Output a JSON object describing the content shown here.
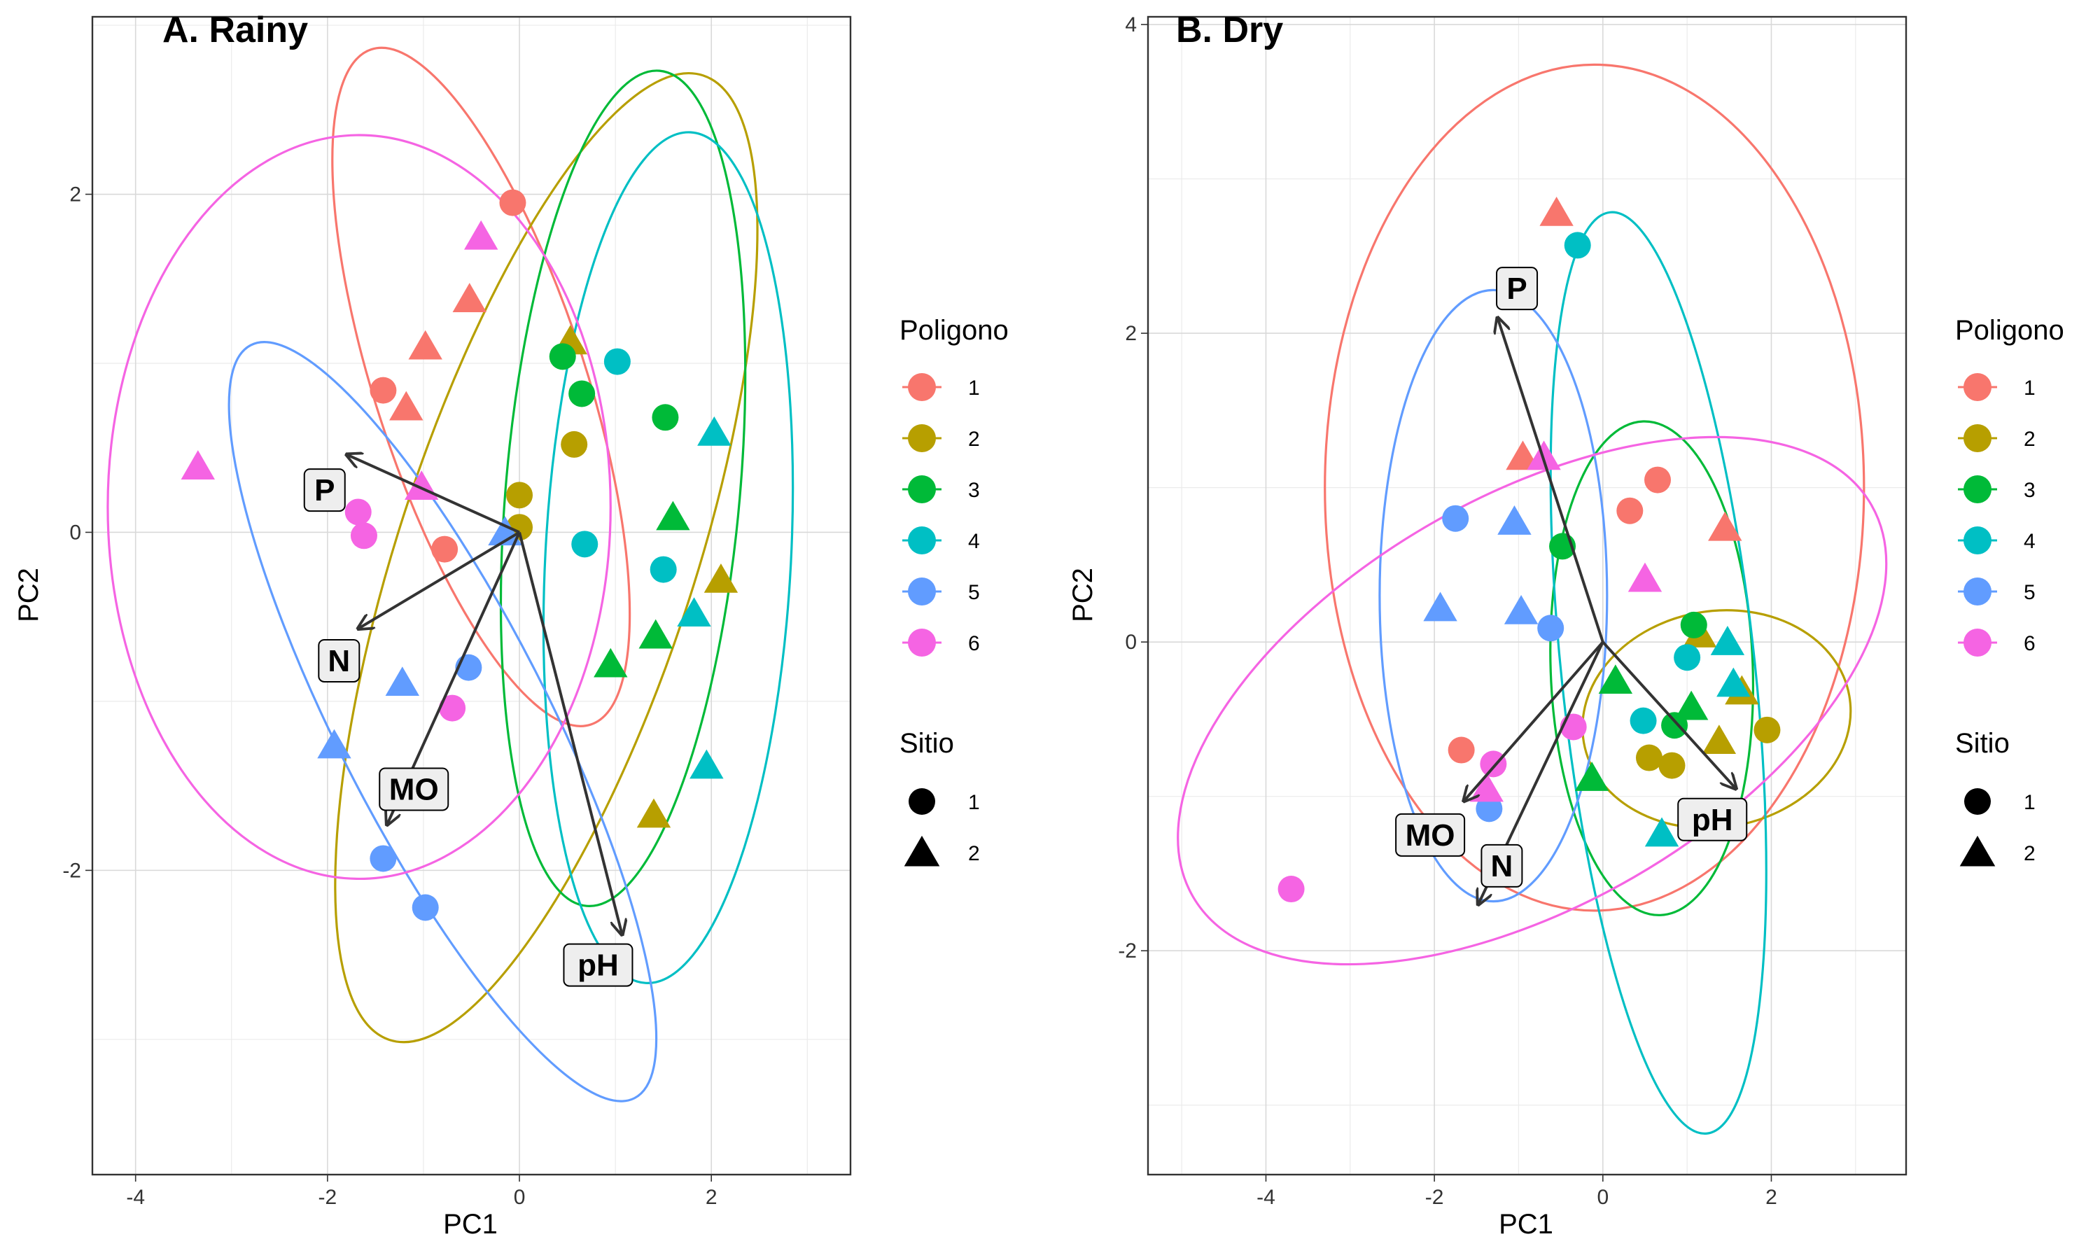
{
  "palette": {
    "1": "#F8766D",
    "2": "#B79F00",
    "3": "#00BA38",
    "4": "#00BFC4",
    "5": "#619CFF",
    "6": "#F564E3"
  },
  "chart_data": [
    {
      "type": "scatter",
      "title": "A. Rainy",
      "xlabel": "PC1",
      "ylabel": "PC2",
      "xlim": [
        -4.45,
        3.45
      ],
      "ylim": [
        -3.8,
        3.05
      ],
      "xticks": [
        -4,
        -2,
        0,
        2
      ],
      "yticks": [
        -2,
        0,
        2
      ],
      "xtick_labels": [
        "-4",
        "-2",
        "0",
        "2"
      ],
      "ytick_labels": [
        "-2",
        "0",
        "2"
      ],
      "grid": true,
      "points": [
        {
          "poligono": 1,
          "sitio": 1,
          "x": -0.07,
          "y": 1.95
        },
        {
          "poligono": 1,
          "sitio": 1,
          "x": -1.42,
          "y": 0.84
        },
        {
          "poligono": 1,
          "sitio": 1,
          "x": -0.78,
          "y": -0.1
        },
        {
          "poligono": 1,
          "sitio": 2,
          "x": -0.52,
          "y": 1.38
        },
        {
          "poligono": 1,
          "sitio": 2,
          "x": -0.98,
          "y": 1.1
        },
        {
          "poligono": 1,
          "sitio": 2,
          "x": -1.18,
          "y": 0.74
        },
        {
          "poligono": 2,
          "sitio": 1,
          "x": 0.0,
          "y": 0.22
        },
        {
          "poligono": 2,
          "sitio": 1,
          "x": 0.0,
          "y": 0.03
        },
        {
          "poligono": 2,
          "sitio": 1,
          "x": 0.57,
          "y": 0.52
        },
        {
          "poligono": 2,
          "sitio": 2,
          "x": 0.53,
          "y": 1.13
        },
        {
          "poligono": 2,
          "sitio": 2,
          "x": 2.1,
          "y": -0.28
        },
        {
          "poligono": 2,
          "sitio": 2,
          "x": 1.4,
          "y": -1.67
        },
        {
          "poligono": 3,
          "sitio": 1,
          "x": 0.45,
          "y": 1.04
        },
        {
          "poligono": 3,
          "sitio": 1,
          "x": 0.65,
          "y": 0.82
        },
        {
          "poligono": 3,
          "sitio": 1,
          "x": 1.52,
          "y": 0.68
        },
        {
          "poligono": 3,
          "sitio": 2,
          "x": 1.6,
          "y": 0.09
        },
        {
          "poligono": 3,
          "sitio": 2,
          "x": 1.42,
          "y": -0.61
        },
        {
          "poligono": 3,
          "sitio": 2,
          "x": 0.95,
          "y": -0.78
        },
        {
          "poligono": 4,
          "sitio": 1,
          "x": 1.02,
          "y": 1.01
        },
        {
          "poligono": 4,
          "sitio": 1,
          "x": 0.68,
          "y": -0.07
        },
        {
          "poligono": 4,
          "sitio": 1,
          "x": 1.5,
          "y": -0.22
        },
        {
          "poligono": 4,
          "sitio": 2,
          "x": 2.03,
          "y": 0.59
        },
        {
          "poligono": 4,
          "sitio": 2,
          "x": 1.82,
          "y": -0.48
        },
        {
          "poligono": 4,
          "sitio": 2,
          "x": 1.95,
          "y": -1.38
        },
        {
          "poligono": 5,
          "sitio": 1,
          "x": -0.53,
          "y": -0.8
        },
        {
          "poligono": 5,
          "sitio": 1,
          "x": -1.42,
          "y": -1.93
        },
        {
          "poligono": 5,
          "sitio": 1,
          "x": -0.98,
          "y": -2.22
        },
        {
          "poligono": 5,
          "sitio": 2,
          "x": -0.15,
          "y": 0.0
        },
        {
          "poligono": 5,
          "sitio": 2,
          "x": -1.22,
          "y": -0.89
        },
        {
          "poligono": 5,
          "sitio": 2,
          "x": -1.93,
          "y": -1.26
        },
        {
          "poligono": 6,
          "sitio": 1,
          "x": -1.68,
          "y": 0.12
        },
        {
          "poligono": 6,
          "sitio": 1,
          "x": -1.62,
          "y": -0.02
        },
        {
          "poligono": 6,
          "sitio": 1,
          "x": -0.7,
          "y": -1.04
        },
        {
          "poligono": 6,
          "sitio": 2,
          "x": -0.4,
          "y": 1.75
        },
        {
          "poligono": 6,
          "sitio": 2,
          "x": -3.35,
          "y": 0.39
        },
        {
          "poligono": 6,
          "sitio": 2,
          "x": -1.02,
          "y": 0.27
        }
      ],
      "ellipses": [
        {
          "poligono": 1,
          "cx": -0.4,
          "cy": 0.86,
          "rx": 1.1,
          "ry": 2.1,
          "rot": -18
        },
        {
          "poligono": 2,
          "cx": 0.28,
          "cy": -0.15,
          "rx": 1.55,
          "ry": 3.0,
          "rot": 18
        },
        {
          "poligono": 3,
          "cx": 1.08,
          "cy": 0.26,
          "rx": 1.22,
          "ry": 2.48,
          "rot": 5
        },
        {
          "poligono": 4,
          "cx": 1.55,
          "cy": -0.15,
          "rx": 1.28,
          "ry": 2.52,
          "rot": 3
        },
        {
          "poligono": 5,
          "cx": -0.8,
          "cy": -1.12,
          "rx": 1.1,
          "ry": 2.5,
          "rot": -27
        },
        {
          "poligono": 6,
          "cx": -1.67,
          "cy": 0.15,
          "rx": 2.62,
          "ry": 2.2,
          "rot": 0
        }
      ],
      "loadings": [
        {
          "label": "P",
          "x": -1.8,
          "y": 0.46,
          "lx": -2.03,
          "ly": 0.25
        },
        {
          "label": "N",
          "x": -1.68,
          "y": -0.57,
          "lx": -1.88,
          "ly": -0.76
        },
        {
          "label": "MO",
          "x": -1.38,
          "y": -1.73,
          "lx": -1.1,
          "ly": -1.52
        },
        {
          "label": "pH",
          "x": 1.07,
          "y": -2.38,
          "lx": 0.82,
          "ly": -2.56
        }
      ]
    },
    {
      "type": "scatter",
      "title": "B. Dry",
      "xlabel": "PC1",
      "ylabel": "PC2",
      "xlim": [
        -5.4,
        3.6
      ],
      "ylim": [
        -3.45,
        4.05
      ],
      "xticks": [
        -4,
        -2,
        0,
        2
      ],
      "yticks": [
        -2,
        0,
        2,
        4
      ],
      "xtick_labels": [
        "-4",
        "-2",
        "0",
        "2"
      ],
      "ytick_labels": [
        "-2",
        "0",
        "2",
        "4"
      ],
      "grid": true,
      "points": [
        {
          "poligono": 1,
          "sitio": 1,
          "x": 0.65,
          "y": 1.05
        },
        {
          "poligono": 1,
          "sitio": 1,
          "x": 0.32,
          "y": 0.85
        },
        {
          "poligono": 1,
          "sitio": 1,
          "x": -1.68,
          "y": -0.7
        },
        {
          "poligono": 1,
          "sitio": 2,
          "x": -0.55,
          "y": 2.78
        },
        {
          "poligono": 1,
          "sitio": 2,
          "x": -0.95,
          "y": 1.2
        },
        {
          "poligono": 1,
          "sitio": 2,
          "x": 1.45,
          "y": 0.74
        },
        {
          "poligono": 2,
          "sitio": 1,
          "x": 0.55,
          "y": -0.75
        },
        {
          "poligono": 2,
          "sitio": 1,
          "x": 0.82,
          "y": -0.8
        },
        {
          "poligono": 2,
          "sitio": 1,
          "x": 1.95,
          "y": -0.57
        },
        {
          "poligono": 2,
          "sitio": 2,
          "x": 1.15,
          "y": 0.05
        },
        {
          "poligono": 2,
          "sitio": 2,
          "x": 1.65,
          "y": -0.32
        },
        {
          "poligono": 2,
          "sitio": 2,
          "x": 1.38,
          "y": -0.64
        },
        {
          "poligono": 3,
          "sitio": 1,
          "x": -0.48,
          "y": 0.62
        },
        {
          "poligono": 3,
          "sitio": 1,
          "x": 1.08,
          "y": 0.11
        },
        {
          "poligono": 3,
          "sitio": 1,
          "x": 0.85,
          "y": -0.54
        },
        {
          "poligono": 3,
          "sitio": 2,
          "x": 0.15,
          "y": -0.25
        },
        {
          "poligono": 3,
          "sitio": 2,
          "x": 1.05,
          "y": -0.42
        },
        {
          "poligono": 3,
          "sitio": 2,
          "x": -0.13,
          "y": -0.88
        },
        {
          "poligono": 4,
          "sitio": 1,
          "x": -0.3,
          "y": 2.57
        },
        {
          "poligono": 4,
          "sitio": 1,
          "x": 1.0,
          "y": -0.1
        },
        {
          "poligono": 4,
          "sitio": 1,
          "x": 0.48,
          "y": -0.51
        },
        {
          "poligono": 4,
          "sitio": 2,
          "x": 1.48,
          "y": 0.0
        },
        {
          "poligono": 4,
          "sitio": 2,
          "x": 1.55,
          "y": -0.27
        },
        {
          "poligono": 4,
          "sitio": 2,
          "x": 0.7,
          "y": -1.24
        },
        {
          "poligono": 5,
          "sitio": 1,
          "x": -1.75,
          "y": 0.8
        },
        {
          "poligono": 5,
          "sitio": 1,
          "x": -0.62,
          "y": 0.09
        },
        {
          "poligono": 5,
          "sitio": 1,
          "x": -1.35,
          "y": -1.08
        },
        {
          "poligono": 5,
          "sitio": 2,
          "x": -1.05,
          "y": 0.78
        },
        {
          "poligono": 5,
          "sitio": 2,
          "x": -1.93,
          "y": 0.22
        },
        {
          "poligono": 5,
          "sitio": 2,
          "x": -0.97,
          "y": 0.2
        },
        {
          "poligono": 6,
          "sitio": 1,
          "x": -0.35,
          "y": -0.55
        },
        {
          "poligono": 6,
          "sitio": 1,
          "x": -1.3,
          "y": -0.79
        },
        {
          "poligono": 6,
          "sitio": 1,
          "x": -3.7,
          "y": -1.6
        },
        {
          "poligono": 6,
          "sitio": 2,
          "x": -0.7,
          "y": 1.2
        },
        {
          "poligono": 6,
          "sitio": 2,
          "x": 0.5,
          "y": 0.41
        },
        {
          "poligono": 6,
          "sitio": 2,
          "x": -1.38,
          "y": -0.95
        }
      ],
      "ellipses": [
        {
          "poligono": 1,
          "cx": -0.1,
          "cy": 1.0,
          "rx": 3.2,
          "ry": 2.74,
          "rot": 0
        },
        {
          "poligono": 2,
          "cx": 1.35,
          "cy": -0.5,
          "rx": 1.6,
          "ry": 0.7,
          "rot": -10
        },
        {
          "poligono": 3,
          "cx": 0.58,
          "cy": -0.17,
          "rx": 1.2,
          "ry": 1.6,
          "rot": -2
        },
        {
          "poligono": 4,
          "cx": 0.66,
          "cy": -0.2,
          "rx": 1.15,
          "ry": 3.0,
          "rot": -6
        },
        {
          "poligono": 5,
          "cx": -1.3,
          "cy": 0.3,
          "rx": 1.35,
          "ry": 1.98,
          "rot": 0
        },
        {
          "poligono": 6,
          "cx": -0.84,
          "cy": -0.38,
          "rx": 4.65,
          "ry": 1.32,
          "rot": -30
        }
      ],
      "loadings": [
        {
          "label": "P",
          "x": -1.25,
          "y": 2.1,
          "lx": -1.02,
          "ly": 2.29
        },
        {
          "label": "MO",
          "x": -1.65,
          "y": -1.03,
          "lx": -2.05,
          "ly": -1.25
        },
        {
          "label": "N",
          "x": -1.48,
          "y": -1.7,
          "lx": -1.2,
          "ly": -1.45
        },
        {
          "label": "pH",
          "x": 1.58,
          "y": -0.95,
          "lx": 1.3,
          "ly": -1.15
        }
      ]
    }
  ],
  "legend": {
    "poligono_title": "Poligono",
    "poligono_items": [
      "1",
      "2",
      "3",
      "4",
      "5",
      "6"
    ],
    "sitio_title": "Sitio",
    "sitio_items": [
      "1",
      "2"
    ]
  }
}
